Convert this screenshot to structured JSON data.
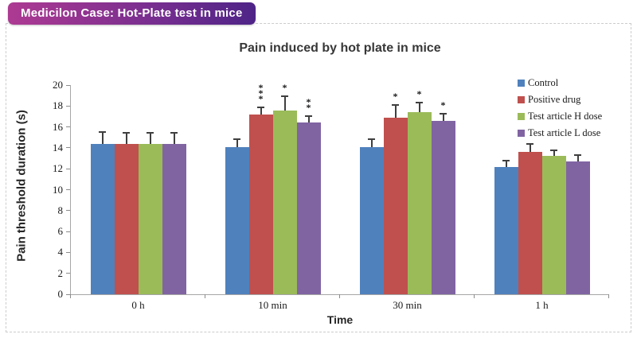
{
  "header": {
    "badge_label": "Medicilon Case: Hot-Plate test in mice",
    "badge_gradient": [
      "#ad3a92",
      "#4e2487"
    ]
  },
  "chart_data": {
    "type": "bar",
    "title": "Pain induced by hot plate in mice",
    "xlabel": "Time",
    "ylabel": "Pain threshold duration (s)",
    "ylim": [
      0,
      20
    ],
    "ytick_step": 2,
    "grid": false,
    "legend_position": "top-right",
    "error_bars": "upper",
    "categories": [
      "0 h",
      "10 min",
      "30 min",
      "1 h"
    ],
    "series": [
      {
        "name": "Control",
        "color": "#4F81BD",
        "values": [
          14.4,
          14.1,
          14.1,
          12.2
        ],
        "errors": [
          1.1,
          0.7,
          0.7,
          0.6
        ],
        "sig": [
          "",
          "",
          "",
          ""
        ]
      },
      {
        "name": "Positive drug",
        "color": "#C0504D",
        "values": [
          14.4,
          17.2,
          16.9,
          13.6
        ],
        "errors": [
          1.0,
          0.7,
          1.2,
          0.8
        ],
        "sig": [
          "",
          "***",
          "*",
          ""
        ]
      },
      {
        "name": "Test article H dose",
        "color": "#9BBB59",
        "values": [
          14.4,
          17.6,
          17.4,
          13.2
        ],
        "errors": [
          1.0,
          1.3,
          0.9,
          0.6
        ],
        "sig": [
          "",
          "*",
          "*",
          ""
        ]
      },
      {
        "name": "Test article L dose",
        "color": "#8064A2",
        "values": [
          14.4,
          16.4,
          16.6,
          12.7
        ],
        "errors": [
          1.0,
          0.6,
          0.7,
          0.6
        ],
        "sig": [
          "",
          "**",
          "*",
          ""
        ]
      }
    ]
  }
}
